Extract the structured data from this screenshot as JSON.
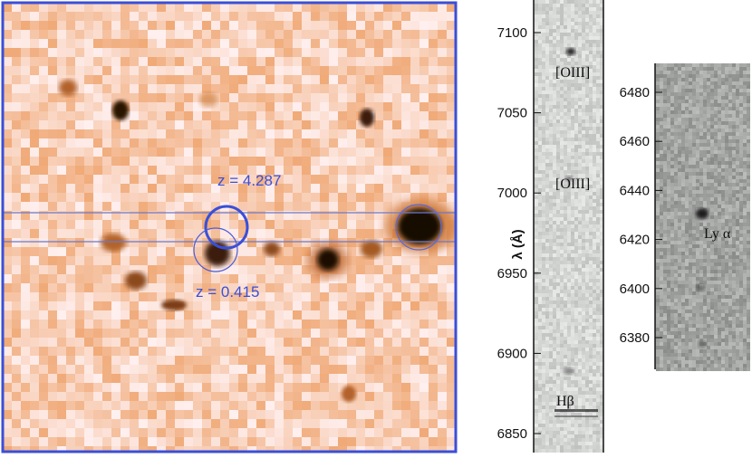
{
  "image_panel": {
    "annotations": [
      {
        "label": "z = 4.287",
        "color": "#3a4fd8"
      },
      {
        "label": "z = 0.415",
        "color": "#3a4fd8"
      }
    ],
    "frame_color": "#3a4fd8",
    "background_colormap": "orange-white"
  },
  "spectrum_left": {
    "axis_label": "λ (Å)",
    "ticks": [
      "7100",
      "7050",
      "7000",
      "6950",
      "6900",
      "6850"
    ],
    "lines": [
      {
        "label": "[OIII]"
      },
      {
        "label": "[OIII]"
      },
      {
        "label": "Hβ"
      }
    ]
  },
  "spectrum_right": {
    "ticks": [
      "6480",
      "6460",
      "6440",
      "6420",
      "6400",
      "6380"
    ],
    "lines": [
      {
        "label": "Ly α"
      }
    ]
  }
}
